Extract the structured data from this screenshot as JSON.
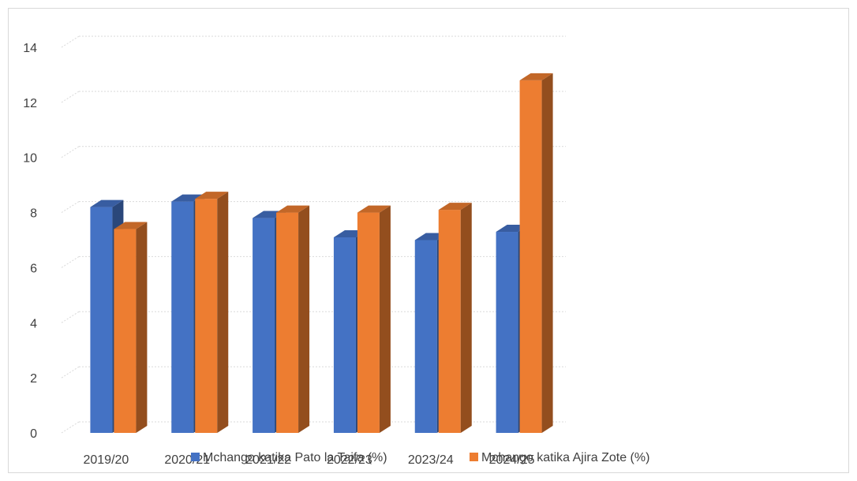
{
  "chart_data": {
    "type": "bar",
    "categories": [
      "2019/20",
      "2020/21",
      "2021/22",
      "2022/23",
      "2023/24",
      "2024/25"
    ],
    "series": [
      {
        "name": "Mchango katika Pato la Taifa (%)",
        "values": [
          8.2,
          8.4,
          7.8,
          7.1,
          7.0,
          7.3
        ],
        "color": "#4472C4"
      },
      {
        "name": "Mchango katika Ajira Zote (%)",
        "values": [
          7.4,
          8.5,
          8.0,
          8.0,
          8.1,
          12.8
        ],
        "color": "#ED7D31"
      }
    ],
    "ylim": [
      0,
      14
    ],
    "yticks": [
      0,
      2,
      4,
      6,
      8,
      10,
      12,
      14
    ],
    "grid": true,
    "legend_position": "bottom",
    "style": "3d-clustered-column"
  }
}
